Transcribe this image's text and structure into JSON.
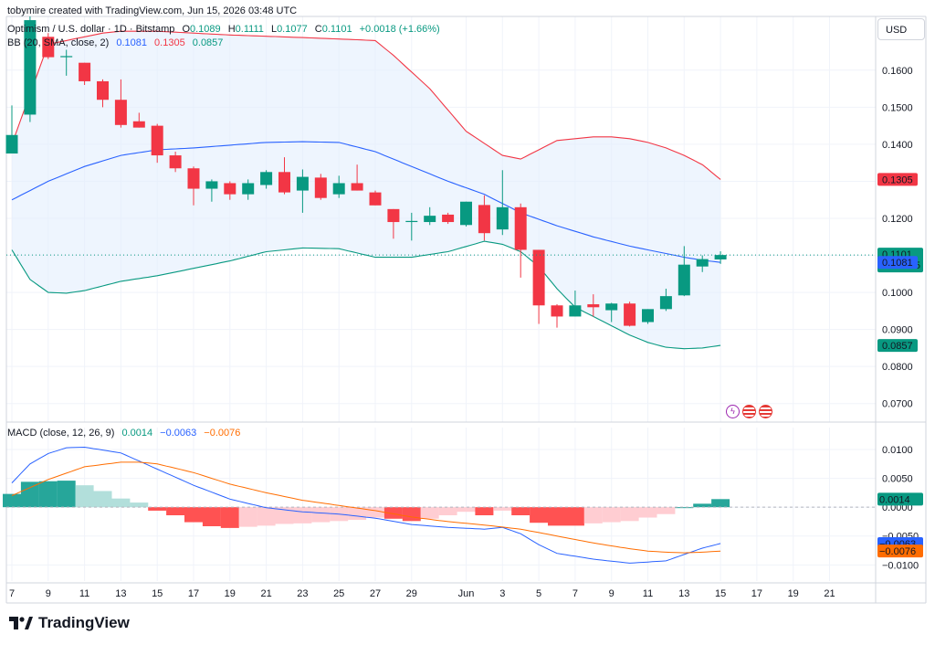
{
  "header": {
    "attribution": "tobymire created with TradingView.com, Jun 15, 2026 03:48 UTC",
    "symbol": "Optimism / U.S. dollar · 1D · Bitstamp",
    "ohlc": {
      "o_label": "O",
      "o": "0.1089",
      "h_label": "H",
      "h": "0.1111",
      "l_label": "L",
      "l": "0.1077",
      "c_label": "C",
      "c": "0.1101",
      "change": "+0.0018 (+1.66%)"
    },
    "bb_label": "BB (20, SMA, close, 2)",
    "bb_values": {
      "basis": "0.1081",
      "upper": "0.1305",
      "lower": "0.0857"
    },
    "macd_label": "MACD (close, 12, 26, 9)",
    "macd_values": {
      "hist": "0.0014",
      "macd": "−0.0063",
      "signal": "−0.0076"
    }
  },
  "currency_button": "USD",
  "logo_text": "TradingView",
  "colors": {
    "up": "#26a69a",
    "down": "#ef5350",
    "up_fill": "#089981",
    "down_fill": "#f23645",
    "bb_basis": "#2962ff",
    "bb_upper": "#f23645",
    "bb_lower": "#089981",
    "bb_fill": "#e3effd",
    "macd_line": "#2962ff",
    "signal_line": "#ff6d00",
    "hist_up_strong": "#26a69a",
    "hist_up_weak": "#b2dfdb",
    "hist_down_strong": "#ff5252",
    "hist_down_weak": "#ffcdd2"
  },
  "chart_data": [
    {
      "type": "candlestick",
      "title": "Optimism / U.S. dollar · 1D · Bitstamp",
      "ylim": [
        0.065,
        0.1745
      ],
      "yticks": [
        "0.1600",
        "0.1500",
        "0.1400",
        "0.1300",
        "0.1200",
        "0.1100",
        "0.1000",
        "0.0900",
        "0.0800",
        "0.0700"
      ],
      "ytick_values": [
        0.16,
        0.15,
        0.14,
        0.13,
        0.12,
        0.11,
        0.1,
        0.09,
        0.08,
        0.07
      ],
      "x_labels": [
        "7",
        "9",
        "11",
        "13",
        "15",
        "17",
        "19",
        "21",
        "23",
        "25",
        "27",
        "29",
        "Jun",
        "3",
        "5",
        "7",
        "9",
        "11",
        "13",
        "15",
        "17",
        "19",
        "21"
      ],
      "x_label_days": [
        0,
        2,
        4,
        6,
        8,
        10,
        12,
        14,
        16,
        18,
        20,
        22,
        25,
        27,
        29,
        31,
        33,
        35,
        37,
        39,
        41,
        43,
        45
      ],
      "x_days_range": [
        0,
        46.6
      ],
      "candles": [
        {
          "d": 0,
          "o": 0.1375,
          "h": 0.1505,
          "l": 0.1375,
          "c": 0.1425
        },
        {
          "d": 1,
          "o": 0.148,
          "h": 0.1745,
          "l": 0.146,
          "c": 0.1735
        },
        {
          "d": 2,
          "o": 0.169,
          "h": 0.17,
          "l": 0.163,
          "c": 0.1635
        },
        {
          "d": 3,
          "o": 0.1635,
          "h": 0.1655,
          "l": 0.1585,
          "c": 0.1638
        },
        {
          "d": 4,
          "o": 0.162,
          "h": 0.162,
          "l": 0.156,
          "c": 0.157
        },
        {
          "d": 5,
          "o": 0.157,
          "h": 0.1575,
          "l": 0.15,
          "c": 0.152
        },
        {
          "d": 6,
          "o": 0.152,
          "h": 0.1575,
          "l": 0.1445,
          "c": 0.1452
        },
        {
          "d": 7,
          "o": 0.1462,
          "h": 0.1485,
          "l": 0.1445,
          "c": 0.1445
        },
        {
          "d": 8,
          "o": 0.145,
          "h": 0.1455,
          "l": 0.135,
          "c": 0.137
        },
        {
          "d": 9,
          "o": 0.137,
          "h": 0.138,
          "l": 0.1325,
          "c": 0.1335
        },
        {
          "d": 10,
          "o": 0.1335,
          "h": 0.134,
          "l": 0.1235,
          "c": 0.128
        },
        {
          "d": 11,
          "o": 0.128,
          "h": 0.1305,
          "l": 0.1245,
          "c": 0.13
        },
        {
          "d": 12,
          "o": 0.1295,
          "h": 0.13,
          "l": 0.125,
          "c": 0.1265
        },
        {
          "d": 13,
          "o": 0.1265,
          "h": 0.1305,
          "l": 0.125,
          "c": 0.1295
        },
        {
          "d": 14,
          "o": 0.129,
          "h": 0.133,
          "l": 0.128,
          "c": 0.1325
        },
        {
          "d": 15,
          "o": 0.1325,
          "h": 0.1365,
          "l": 0.1265,
          "c": 0.127
        },
        {
          "d": 16,
          "o": 0.1275,
          "h": 0.1332,
          "l": 0.1215,
          "c": 0.1312
        },
        {
          "d": 17,
          "o": 0.131,
          "h": 0.132,
          "l": 0.125,
          "c": 0.1255
        },
        {
          "d": 18,
          "o": 0.1265,
          "h": 0.1315,
          "l": 0.1255,
          "c": 0.1295
        },
        {
          "d": 19,
          "o": 0.1295,
          "h": 0.1345,
          "l": 0.1275,
          "c": 0.1275
        },
        {
          "d": 20,
          "o": 0.127,
          "h": 0.1275,
          "l": 0.1235,
          "c": 0.1235
        },
        {
          "d": 21,
          "o": 0.1225,
          "h": 0.1225,
          "l": 0.1145,
          "c": 0.119
        },
        {
          "d": 22,
          "o": 0.119,
          "h": 0.1215,
          "l": 0.114,
          "c": 0.1193
        },
        {
          "d": 23,
          "o": 0.119,
          "h": 0.123,
          "l": 0.1182,
          "c": 0.1207
        },
        {
          "d": 24,
          "o": 0.121,
          "h": 0.1215,
          "l": 0.1185,
          "c": 0.119
        },
        {
          "d": 25,
          "o": 0.1182,
          "h": 0.1245,
          "l": 0.1178,
          "c": 0.1245
        },
        {
          "d": 26,
          "o": 0.1236,
          "h": 0.1262,
          "l": 0.114,
          "c": 0.116
        },
        {
          "d": 27,
          "o": 0.117,
          "h": 0.133,
          "l": 0.1155,
          "c": 0.123
        },
        {
          "d": 28,
          "o": 0.123,
          "h": 0.124,
          "l": 0.104,
          "c": 0.1115
        },
        {
          "d": 29,
          "o": 0.1115,
          "h": 0.1115,
          "l": 0.0915,
          "c": 0.0965
        },
        {
          "d": 30,
          "o": 0.0965,
          "h": 0.0968,
          "l": 0.0905,
          "c": 0.0935
        },
        {
          "d": 31,
          "o": 0.0935,
          "h": 0.1005,
          "l": 0.0935,
          "c": 0.0965
        },
        {
          "d": 32,
          "o": 0.0968,
          "h": 0.0995,
          "l": 0.0935,
          "c": 0.096
        },
        {
          "d": 33,
          "o": 0.0952,
          "h": 0.0972,
          "l": 0.092,
          "c": 0.097
        },
        {
          "d": 34,
          "o": 0.097,
          "h": 0.0975,
          "l": 0.0908,
          "c": 0.091
        },
        {
          "d": 35,
          "o": 0.092,
          "h": 0.0955,
          "l": 0.0915,
          "c": 0.0955
        },
        {
          "d": 36,
          "o": 0.0955,
          "h": 0.101,
          "l": 0.095,
          "c": 0.099
        },
        {
          "d": 37,
          "o": 0.0992,
          "h": 0.1125,
          "l": 0.099,
          "c": 0.1075
        },
        {
          "d": 38,
          "o": 0.107,
          "h": 0.11,
          "l": 0.1055,
          "c": 0.109
        },
        {
          "d": 39,
          "o": 0.1089,
          "h": 0.1111,
          "l": 0.1077,
          "c": 0.1101
        }
      ],
      "bb_upper": {
        "d": [
          0,
          2,
          4,
          5,
          6,
          8,
          10,
          12,
          16,
          20,
          21,
          23,
          25,
          27,
          28,
          29,
          30,
          31,
          32,
          33,
          34,
          35,
          36,
          37,
          38,
          39
        ],
        "v": [
          0.14,
          0.167,
          0.169,
          0.17,
          0.1705,
          0.1705,
          0.17,
          0.1695,
          0.1688,
          0.168,
          0.164,
          0.155,
          0.1435,
          0.137,
          0.136,
          0.1385,
          0.141,
          0.1415,
          0.142,
          0.142,
          0.1415,
          0.1405,
          0.139,
          0.137,
          0.1345,
          0.1305
        ]
      },
      "bb_basis": {
        "d": [
          0,
          2,
          4,
          6,
          8,
          10,
          14,
          16,
          18,
          20,
          22,
          24,
          26,
          28,
          30,
          32,
          34,
          36,
          37,
          38,
          39
        ],
        "v": [
          0.125,
          0.13,
          0.134,
          0.137,
          0.1385,
          0.139,
          0.1405,
          0.1407,
          0.1405,
          0.138,
          0.134,
          0.13,
          0.1265,
          0.1215,
          0.118,
          0.115,
          0.1125,
          0.1105,
          0.1095,
          0.1087,
          0.1081
        ]
      },
      "bb_lower": {
        "d": [
          0,
          1,
          2,
          3,
          4,
          6,
          8,
          10,
          12,
          14,
          16,
          18,
          20,
          22,
          24,
          26,
          27,
          28,
          29,
          30,
          31,
          32,
          33,
          34,
          35,
          36,
          37,
          38,
          39
        ],
        "v": [
          0.1115,
          0.1035,
          0.1,
          0.0998,
          0.1005,
          0.103,
          0.1045,
          0.1065,
          0.1085,
          0.111,
          0.112,
          0.1118,
          0.1095,
          0.1095,
          0.111,
          0.1138,
          0.113,
          0.111,
          0.107,
          0.101,
          0.096,
          0.0935,
          0.091,
          0.0885,
          0.0865,
          0.0852,
          0.0848,
          0.085,
          0.0857
        ]
      },
      "last_price": {
        "value": "0.1101",
        "countdown": "20:11:25"
      },
      "price_tags": [
        {
          "value": "0.1305",
          "y": 0.1305,
          "color": "#f23645"
        },
        {
          "value": "0.1081",
          "y": 0.1081,
          "color": "#2962ff"
        },
        {
          "value": "0.0857",
          "y": 0.0857,
          "color": "#089981"
        }
      ]
    },
    {
      "type": "macd",
      "title": "MACD (close, 12, 26, 9)",
      "ylim": [
        -0.0128,
        0.0138
      ],
      "yticks": [
        "0.0100",
        "0.0050",
        "0.0000",
        "−0.0050",
        "−0.0100"
      ],
      "ytick_values": [
        0.01,
        0.005,
        0.0,
        -0.005,
        -0.01
      ],
      "histogram": [
        0.0023,
        0.0044,
        0.0045,
        0.0046,
        0.0038,
        0.0028,
        0.0015,
        0.0008,
        -0.0006,
        -0.0014,
        -0.0026,
        -0.0033,
        -0.0036,
        -0.0034,
        -0.0032,
        -0.0029,
        -0.0028,
        -0.0026,
        -0.0024,
        -0.0022,
        -0.0018,
        -0.002,
        -0.0024,
        -0.002,
        -0.0014,
        -0.0008,
        -0.0014,
        -0.0006,
        -0.0014,
        -0.0027,
        -0.0032,
        -0.0032,
        -0.0028,
        -0.0026,
        -0.0024,
        -0.0018,
        -0.0012,
        0.0,
        0.0006,
        0.0014
      ],
      "macd_line": {
        "d": [
          0,
          1,
          2,
          3,
          4,
          6,
          8,
          10,
          12,
          14,
          16,
          18,
          20,
          22,
          24,
          26,
          27,
          28,
          29,
          30,
          32,
          34,
          36,
          37,
          38,
          39
        ],
        "v": [
          0.0042,
          0.0075,
          0.0093,
          0.0103,
          0.0104,
          0.0094,
          0.0066,
          0.0038,
          0.0014,
          -0.0001,
          -0.0008,
          -0.0012,
          -0.0019,
          -0.003,
          -0.0035,
          -0.0038,
          -0.0035,
          -0.0046,
          -0.0065,
          -0.008,
          -0.009,
          -0.0097,
          -0.0093,
          -0.0082,
          -0.0071,
          -0.0063
        ]
      },
      "signal_line": {
        "d": [
          0,
          2,
          4,
          6,
          7,
          8,
          10,
          12,
          14,
          16,
          18,
          20,
          22,
          24,
          26,
          28,
          30,
          32,
          34,
          35,
          36,
          37,
          38,
          39
        ],
        "v": [
          0.002,
          0.0048,
          0.007,
          0.0078,
          0.0078,
          0.0075,
          0.006,
          0.004,
          0.0025,
          0.0012,
          0.0003,
          -0.0006,
          -0.0017,
          -0.0025,
          -0.0031,
          -0.0038,
          -0.005,
          -0.0062,
          -0.0072,
          -0.0076,
          -0.0078,
          -0.0079,
          -0.0078,
          -0.0076
        ]
      },
      "price_tags": [
        {
          "value": "0.0014",
          "y": 0.0014,
          "color": "#089981"
        },
        {
          "value": "−0.0063",
          "y": -0.0063,
          "color": "#2962ff"
        },
        {
          "value": "−0.0076",
          "y": -0.0076,
          "color": "#ff6d00"
        }
      ]
    }
  ]
}
